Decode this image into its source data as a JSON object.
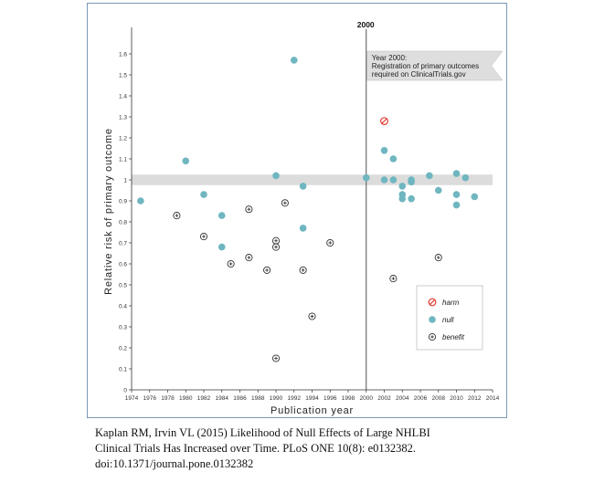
{
  "chart_data": {
    "type": "scatter",
    "title": "",
    "xlabel": "Publication year",
    "ylabel": "Relative risk of primary outcome",
    "xlim": [
      1974,
      2014
    ],
    "ylim": [
      0,
      1.7
    ],
    "x_ticks": [
      "1974",
      "1976",
      "1978",
      "1980",
      "1982",
      "1984",
      "1986",
      "1988",
      "1990",
      "1992",
      "1994",
      "1996",
      "1998",
      "2000",
      "2002",
      "2004",
      "2006",
      "2008",
      "2010",
      "2012",
      "2014"
    ],
    "y_ticks": [
      "0",
      "0.1",
      "0.2",
      "0.3",
      "0.4",
      "0.5",
      "0.6",
      "0.7",
      "0.8",
      "0.9",
      "1",
      "1.1",
      "1.2",
      "1.3",
      "1.4",
      "1.5",
      "1.6"
    ],
    "null_band": [
      0.975,
      1.025
    ],
    "grid": false,
    "legend_position": "bottom-right",
    "vline": {
      "x": 2000,
      "label": "2000"
    },
    "annotation": {
      "lines": [
        "Year 2000:",
        "Registration of primary outcomes",
        "required on ClinicalTrials.gov"
      ]
    },
    "colors": {
      "harm": "#e03c31",
      "null": "#6fb6c0",
      "benefit": "#333333",
      "band": "#dcdcdc",
      "flag": "#dedede"
    },
    "series": [
      {
        "name": "harm",
        "points": [
          {
            "x": 2002,
            "y": 1.28
          }
        ]
      },
      {
        "name": "null",
        "points": [
          {
            "x": 1975,
            "y": 0.9
          },
          {
            "x": 1980,
            "y": 1.09
          },
          {
            "x": 1982,
            "y": 0.93
          },
          {
            "x": 1984,
            "y": 0.83
          },
          {
            "x": 1984,
            "y": 0.68
          },
          {
            "x": 1990,
            "y": 1.02
          },
          {
            "x": 1992,
            "y": 1.57
          },
          {
            "x": 1993,
            "y": 0.97
          },
          {
            "x": 1993,
            "y": 0.77
          },
          {
            "x": 2000,
            "y": 1.01
          },
          {
            "x": 2002,
            "y": 1.14
          },
          {
            "x": 2002,
            "y": 1.0
          },
          {
            "x": 2003,
            "y": 1.1
          },
          {
            "x": 2003,
            "y": 1.0
          },
          {
            "x": 2004,
            "y": 0.97
          },
          {
            "x": 2004,
            "y": 0.93
          },
          {
            "x": 2004,
            "y": 0.91
          },
          {
            "x": 2005,
            "y": 1.0
          },
          {
            "x": 2005,
            "y": 0.99
          },
          {
            "x": 2005,
            "y": 0.91
          },
          {
            "x": 2007,
            "y": 1.02
          },
          {
            "x": 2008,
            "y": 0.95
          },
          {
            "x": 2010,
            "y": 1.03
          },
          {
            "x": 2010,
            "y": 0.93
          },
          {
            "x": 2010,
            "y": 0.88
          },
          {
            "x": 2011,
            "y": 1.01
          },
          {
            "x": 2012,
            "y": 0.92
          }
        ]
      },
      {
        "name": "benefit",
        "points": [
          {
            "x": 1979,
            "y": 0.83
          },
          {
            "x": 1982,
            "y": 0.73
          },
          {
            "x": 1985,
            "y": 0.6
          },
          {
            "x": 1987,
            "y": 0.86
          },
          {
            "x": 1987,
            "y": 0.63
          },
          {
            "x": 1989,
            "y": 0.57
          },
          {
            "x": 1990,
            "y": 0.71
          },
          {
            "x": 1990,
            "y": 0.68
          },
          {
            "x": 1990,
            "y": 0.15
          },
          {
            "x": 1991,
            "y": 0.89
          },
          {
            "x": 1993,
            "y": 0.57
          },
          {
            "x": 1994,
            "y": 0.35
          },
          {
            "x": 1996,
            "y": 0.7
          },
          {
            "x": 2003,
            "y": 0.53
          },
          {
            "x": 2008,
            "y": 0.63
          }
        ]
      }
    ]
  },
  "caption": {
    "lines": [
      "Kaplan RM, Irvin VL (2015) Likelihood of Null Effects of Large NHLBI",
      "Clinical Trials Has Increased over Time. PLoS ONE 10(8): e0132382.",
      "doi:10.1371/journal.pone.0132382"
    ]
  }
}
